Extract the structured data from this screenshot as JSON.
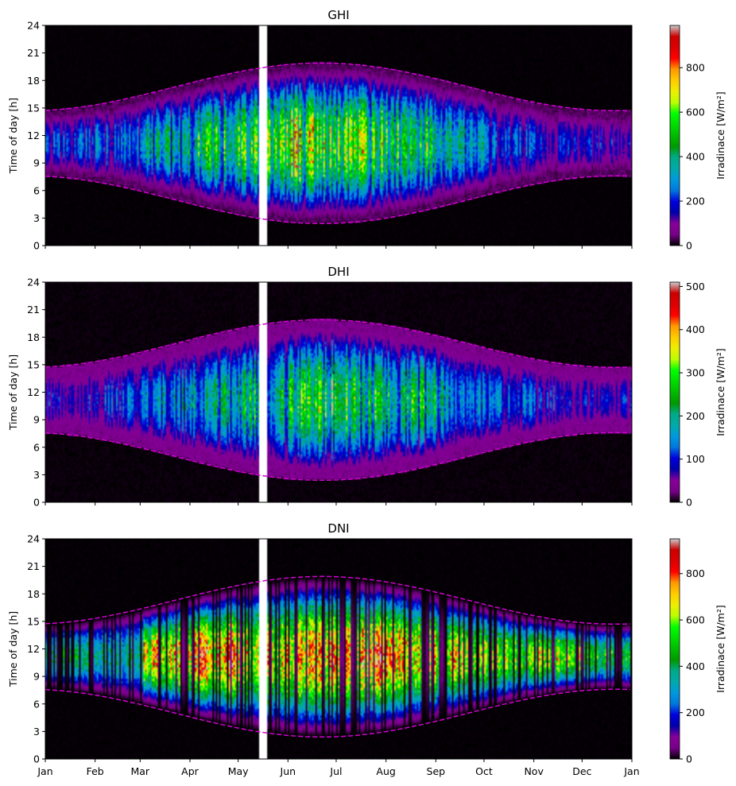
{
  "chart_data": [
    {
      "type": "heatmap",
      "title": "GHI",
      "xlabel": "",
      "ylabel": "Time of day [h]",
      "ylim": [
        0,
        24
      ],
      "yticks": [
        0,
        3,
        6,
        9,
        12,
        15,
        18,
        21,
        24
      ],
      "x_tick_labels": [
        "Jan",
        "Feb",
        "Mar",
        "Apr",
        "May",
        "Jun",
        "Jul",
        "Aug",
        "Sep",
        "Oct",
        "Nov",
        "Dec",
        "Jan"
      ],
      "show_x_tick_labels": false,
      "colorbar": {
        "label": "Irradinace [W/m²]",
        "min": 0,
        "max": 990,
        "ticks": [
          0,
          200,
          400,
          600,
          800
        ]
      },
      "colormap": "nipy_spectral",
      "overlay": "daylight boundary (sunrise / sunset), dashed magenta",
      "missing_data_days": [
        133,
        137
      ],
      "monthly_peak": [
        330,
        360,
        520,
        640,
        700,
        820,
        760,
        650,
        500,
        320,
        230,
        240
      ]
    },
    {
      "type": "heatmap",
      "title": "DHI",
      "xlabel": "",
      "ylabel": "Time of day [h]",
      "ylim": [
        0,
        24
      ],
      "yticks": [
        0,
        3,
        6,
        9,
        12,
        15,
        18,
        21,
        24
      ],
      "x_tick_labels": [
        "Jan",
        "Feb",
        "Mar",
        "Apr",
        "May",
        "Jun",
        "Jul",
        "Aug",
        "Sep",
        "Oct",
        "Nov",
        "Dec",
        "Jan"
      ],
      "show_x_tick_labels": false,
      "colorbar": {
        "label": "Irradinace [W/m²]",
        "min": 0,
        "max": 510,
        "ticks": [
          0,
          100,
          200,
          300,
          400,
          500
        ]
      },
      "colormap": "nipy_spectral",
      "overlay": "daylight boundary (sunrise / sunset), dashed magenta",
      "missing_data_days": [
        133,
        137
      ],
      "monthly_peak": [
        130,
        160,
        220,
        260,
        300,
        360,
        330,
        300,
        240,
        170,
        130,
        120
      ]
    },
    {
      "type": "heatmap",
      "title": "DNI",
      "xlabel": "",
      "ylabel": "Time of day [h]",
      "ylim": [
        0,
        24
      ],
      "yticks": [
        0,
        3,
        6,
        9,
        12,
        15,
        18,
        21,
        24
      ],
      "x_tick_labels": [
        "Jan",
        "Feb",
        "Mar",
        "Apr",
        "May",
        "Jun",
        "Jul",
        "Aug",
        "Sep",
        "Oct",
        "Nov",
        "Dec",
        "Jan"
      ],
      "show_x_tick_labels": true,
      "colorbar": {
        "label": "Irradinace [W/m²]",
        "min": 0,
        "max": 950,
        "ticks": [
          0,
          200,
          400,
          600,
          800
        ]
      },
      "colormap": "nipy_spectral",
      "overlay": "daylight boundary (sunrise / sunset), dashed magenta",
      "missing_data_days": [
        133,
        137
      ],
      "monthly_peak": [
        500,
        420,
        820,
        900,
        760,
        850,
        880,
        820,
        760,
        650,
        720,
        550
      ]
    }
  ],
  "daylight_boundary": {
    "sunrise_min_h": 2.4,
    "sunrise_max_h": 7.6,
    "sunset_min_h": 14.7,
    "sunset_max_h": 19.9,
    "solstice_day": 172
  }
}
